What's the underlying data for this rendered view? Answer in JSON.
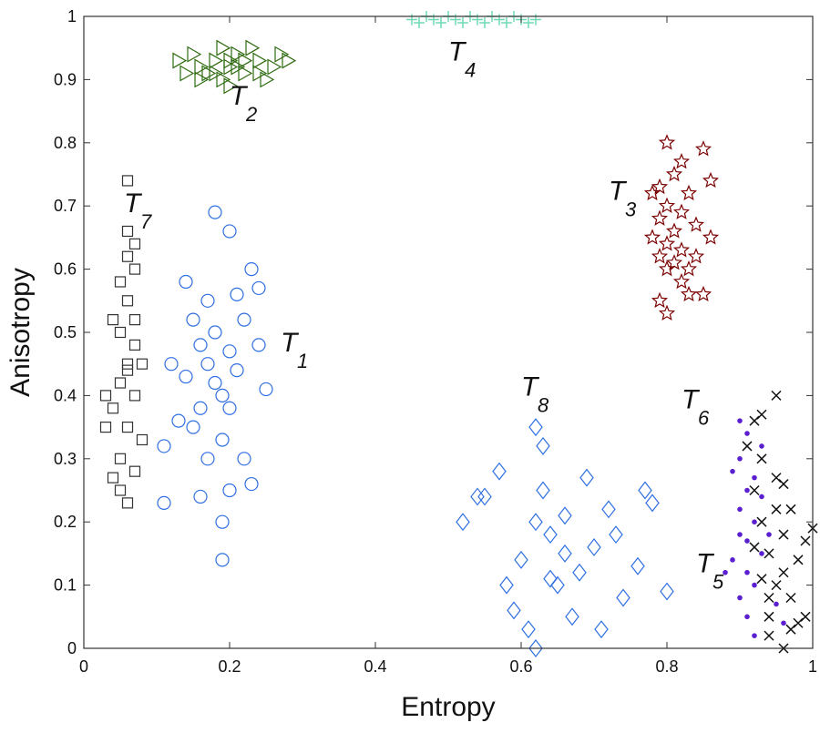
{
  "chart_data": {
    "type": "scatter",
    "title": "",
    "xlabel": "Entropy",
    "ylabel": "Anisotropy",
    "xlim": [
      0,
      1
    ],
    "ylim": [
      0,
      1
    ],
    "xticks": [
      "0",
      "0.2",
      "0.4",
      "0.6",
      "0.8",
      "1"
    ],
    "yticks": [
      "0",
      "0.1",
      "0.2",
      "0.3",
      "0.4",
      "0.5",
      "0.6",
      "0.7",
      "0.8",
      "0.9",
      "1"
    ],
    "grid": false,
    "series": [
      {
        "name": "T1",
        "marker": "circle",
        "color": "#2f6fe0",
        "points": [
          [
            0.18,
            0.42
          ],
          [
            0.17,
            0.45
          ],
          [
            0.19,
            0.4
          ],
          [
            0.16,
            0.48
          ],
          [
            0.2,
            0.38
          ],
          [
            0.18,
            0.5
          ],
          [
            0.15,
            0.35
          ],
          [
            0.21,
            0.44
          ],
          [
            0.19,
            0.33
          ],
          [
            0.17,
            0.55
          ],
          [
            0.14,
            0.58
          ],
          [
            0.22,
            0.52
          ],
          [
            0.23,
            0.6
          ],
          [
            0.2,
            0.66
          ],
          [
            0.18,
            0.69
          ],
          [
            0.12,
            0.45
          ],
          [
            0.11,
            0.32
          ],
          [
            0.13,
            0.36
          ],
          [
            0.24,
            0.48
          ],
          [
            0.25,
            0.41
          ],
          [
            0.22,
            0.3
          ],
          [
            0.2,
            0.25
          ],
          [
            0.19,
            0.2
          ],
          [
            0.19,
            0.14
          ],
          [
            0.16,
            0.24
          ],
          [
            0.11,
            0.23
          ],
          [
            0.23,
            0.26
          ],
          [
            0.15,
            0.52
          ],
          [
            0.21,
            0.56
          ],
          [
            0.17,
            0.3
          ],
          [
            0.14,
            0.43
          ],
          [
            0.24,
            0.57
          ],
          [
            0.16,
            0.38
          ],
          [
            0.2,
            0.47
          ]
        ]
      },
      {
        "name": "T2",
        "marker": "triangle-right",
        "color": "#2e6b10",
        "points": [
          [
            0.2,
            0.92
          ],
          [
            0.18,
            0.93
          ],
          [
            0.22,
            0.91
          ],
          [
            0.16,
            0.92
          ],
          [
            0.24,
            0.93
          ],
          [
            0.19,
            0.9
          ],
          [
            0.21,
            0.94
          ],
          [
            0.14,
            0.91
          ],
          [
            0.26,
            0.92
          ],
          [
            0.17,
            0.91
          ],
          [
            0.23,
            0.95
          ],
          [
            0.13,
            0.93
          ],
          [
            0.28,
            0.93
          ],
          [
            0.2,
            0.89
          ],
          [
            0.15,
            0.94
          ],
          [
            0.25,
            0.9
          ],
          [
            0.27,
            0.94
          ],
          [
            0.19,
            0.95
          ],
          [
            0.22,
            0.93
          ],
          [
            0.18,
            0.91
          ],
          [
            0.21,
            0.92
          ],
          [
            0.24,
            0.91
          ],
          [
            0.16,
            0.9
          ],
          [
            0.2,
            0.93
          ]
        ]
      },
      {
        "name": "T3",
        "marker": "star",
        "color": "#7a0000",
        "points": [
          [
            0.81,
            0.66
          ],
          [
            0.8,
            0.7
          ],
          [
            0.82,
            0.63
          ],
          [
            0.79,
            0.68
          ],
          [
            0.83,
            0.72
          ],
          [
            0.8,
            0.6
          ],
          [
            0.81,
            0.75
          ],
          [
            0.78,
            0.65
          ],
          [
            0.84,
            0.67
          ],
          [
            0.82,
            0.58
          ],
          [
            0.79,
            0.62
          ],
          [
            0.8,
            0.8
          ],
          [
            0.85,
            0.79
          ],
          [
            0.86,
            0.74
          ],
          [
            0.86,
            0.65
          ],
          [
            0.83,
            0.56
          ],
          [
            0.85,
            0.56
          ],
          [
            0.8,
            0.53
          ],
          [
            0.79,
            0.55
          ],
          [
            0.82,
            0.69
          ],
          [
            0.81,
            0.61
          ],
          [
            0.78,
            0.72
          ],
          [
            0.84,
            0.62
          ],
          [
            0.8,
            0.64
          ],
          [
            0.82,
            0.77
          ],
          [
            0.83,
            0.6
          ],
          [
            0.79,
            0.73
          ]
        ]
      },
      {
        "name": "T4",
        "marker": "plus",
        "color": "#70d8b8",
        "points": [
          [
            0.45,
            0.995
          ],
          [
            0.46,
            0.99
          ],
          [
            0.47,
            1.0
          ],
          [
            0.48,
            0.995
          ],
          [
            0.49,
            0.99
          ],
          [
            0.5,
            1.0
          ],
          [
            0.51,
            0.995
          ],
          [
            0.52,
            0.99
          ],
          [
            0.53,
            1.0
          ],
          [
            0.54,
            0.995
          ],
          [
            0.55,
            0.99
          ],
          [
            0.56,
            1.0
          ],
          [
            0.57,
            0.995
          ],
          [
            0.58,
            0.99
          ],
          [
            0.59,
            1.0
          ],
          [
            0.6,
            0.995
          ],
          [
            0.61,
            0.99
          ],
          [
            0.62,
            0.995
          ]
        ]
      },
      {
        "name": "T5",
        "marker": "dot",
        "color": "#5a20d0",
        "points": [
          [
            0.92,
            0.2
          ],
          [
            0.91,
            0.25
          ],
          [
            0.9,
            0.3
          ],
          [
            0.93,
            0.15
          ],
          [
            0.92,
            0.1
          ],
          [
            0.9,
            0.22
          ],
          [
            0.91,
            0.05
          ],
          [
            0.89,
            0.28
          ],
          [
            0.94,
            0.18
          ],
          [
            0.9,
            0.36
          ],
          [
            0.91,
            0.34
          ],
          [
            0.93,
            0.32
          ],
          [
            0.89,
            0.14
          ],
          [
            0.92,
            0.02
          ],
          [
            0.9,
            0.08
          ],
          [
            0.95,
            0.07
          ],
          [
            0.91,
            0.17
          ],
          [
            0.88,
            0.12
          ],
          [
            0.92,
            0.27
          ],
          [
            0.96,
            0.04
          ],
          [
            0.9,
            0.18
          ],
          [
            0.93,
            0.24
          ],
          [
            0.91,
            0.12
          ]
        ]
      },
      {
        "name": "T6",
        "marker": "x",
        "color": "#111111",
        "points": [
          [
            0.94,
            0.15
          ],
          [
            0.93,
            0.2
          ],
          [
            0.95,
            0.1
          ],
          [
            0.92,
            0.25
          ],
          [
            0.96,
            0.12
          ],
          [
            0.94,
            0.05
          ],
          [
            0.97,
            0.08
          ],
          [
            0.93,
            0.3
          ],
          [
            0.91,
            0.32
          ],
          [
            0.95,
            0.22
          ],
          [
            0.96,
            0.18
          ],
          [
            0.98,
            0.14
          ],
          [
            1.0,
            0.19
          ],
          [
            0.99,
            0.17
          ],
          [
            0.97,
            0.22
          ],
          [
            0.92,
            0.36
          ],
          [
            0.93,
            0.37
          ],
          [
            0.95,
            0.4
          ],
          [
            0.94,
            0.02
          ],
          [
            0.96,
            0.0
          ],
          [
            0.98,
            0.04
          ],
          [
            0.93,
            0.11
          ],
          [
            0.95,
            0.27
          ],
          [
            0.94,
            0.08
          ],
          [
            0.96,
            0.26
          ],
          [
            0.92,
            0.16
          ],
          [
            0.97,
            0.03
          ],
          [
            0.99,
            0.05
          ]
        ]
      },
      {
        "name": "T7",
        "marker": "square",
        "color": "#333333",
        "points": [
          [
            0.06,
            0.45
          ],
          [
            0.05,
            0.5
          ],
          [
            0.07,
            0.4
          ],
          [
            0.06,
            0.55
          ],
          [
            0.05,
            0.42
          ],
          [
            0.07,
            0.48
          ],
          [
            0.06,
            0.35
          ],
          [
            0.04,
            0.38
          ],
          [
            0.05,
            0.3
          ],
          [
            0.07,
            0.6
          ],
          [
            0.06,
            0.62
          ],
          [
            0.06,
            0.66
          ],
          [
            0.06,
            0.74
          ],
          [
            0.07,
            0.28
          ],
          [
            0.05,
            0.25
          ],
          [
            0.06,
            0.23
          ],
          [
            0.03,
            0.4
          ],
          [
            0.03,
            0.35
          ],
          [
            0.04,
            0.27
          ],
          [
            0.08,
            0.45
          ],
          [
            0.08,
            0.33
          ],
          [
            0.04,
            0.52
          ],
          [
            0.07,
            0.52
          ],
          [
            0.05,
            0.58
          ],
          [
            0.06,
            0.44
          ],
          [
            0.07,
            0.64
          ]
        ]
      },
      {
        "name": "T8",
        "marker": "diamond",
        "color": "#2f6fe0",
        "points": [
          [
            0.66,
            0.15
          ],
          [
            0.64,
            0.18
          ],
          [
            0.68,
            0.12
          ],
          [
            0.62,
            0.2
          ],
          [
            0.7,
            0.16
          ],
          [
            0.65,
            0.1
          ],
          [
            0.72,
            0.22
          ],
          [
            0.6,
            0.14
          ],
          [
            0.74,
            0.08
          ],
          [
            0.63,
            0.25
          ],
          [
            0.67,
            0.05
          ],
          [
            0.62,
            0.35
          ],
          [
            0.63,
            0.32
          ],
          [
            0.55,
            0.24
          ],
          [
            0.54,
            0.24
          ],
          [
            0.52,
            0.2
          ],
          [
            0.57,
            0.28
          ],
          [
            0.78,
            0.23
          ],
          [
            0.8,
            0.09
          ],
          [
            0.77,
            0.25
          ],
          [
            0.62,
            0.0
          ],
          [
            0.61,
            0.03
          ],
          [
            0.76,
            0.13
          ],
          [
            0.58,
            0.1
          ],
          [
            0.69,
            0.27
          ],
          [
            0.71,
            0.03
          ],
          [
            0.66,
            0.21
          ],
          [
            0.73,
            0.18
          ],
          [
            0.59,
            0.06
          ],
          [
            0.64,
            0.11
          ]
        ]
      }
    ],
    "annotations": [
      {
        "letter": "T",
        "sub": "1"
      },
      {
        "letter": "T",
        "sub": "2"
      },
      {
        "letter": "T",
        "sub": "3"
      },
      {
        "letter": "T",
        "sub": "4"
      },
      {
        "letter": "T",
        "sub": "5"
      },
      {
        "letter": "T",
        "sub": "6"
      },
      {
        "letter": "T",
        "sub": "7"
      },
      {
        "letter": "T",
        "sub": "8"
      }
    ]
  }
}
